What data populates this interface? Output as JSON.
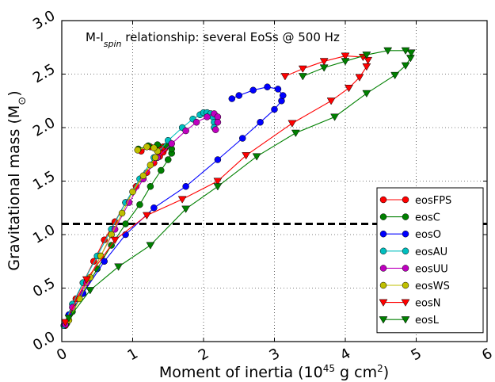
{
  "chart_data": {
    "type": "line",
    "annotation": {
      "prefix": "M-I",
      "sub": "spin",
      "suffix": " relationship: several EoSs @ 500 Hz"
    },
    "xlabel": {
      "prefix": "Moment of inertia (10",
      "sup": "45",
      "suffix": " g cm",
      "sup2": "2",
      "end": ")"
    },
    "ylabel": {
      "prefix": "Gravitational mass (M",
      "sub": "⊙",
      "end": ")"
    },
    "xlim": [
      0,
      6
    ],
    "ylim": [
      0,
      3
    ],
    "xticks": [
      "0",
      "1",
      "2",
      "3",
      "4",
      "5",
      "6"
    ],
    "yticks": [
      "0.0",
      "0.5",
      "1.0",
      "1.5",
      "2.0",
      "2.5",
      "3.0"
    ],
    "grid": true,
    "legend_position": "lower-right",
    "reference_line": {
      "y": 1.1,
      "style": "dashed",
      "color": "#000000"
    },
    "series": [
      {
        "name": "eosFPS",
        "color": "#ff0000",
        "marker": "circle",
        "points": [
          [
            0.05,
            0.15
          ],
          [
            0.1,
            0.25
          ],
          [
            0.2,
            0.4
          ],
          [
            0.3,
            0.55
          ],
          [
            0.45,
            0.75
          ],
          [
            0.6,
            0.95
          ],
          [
            0.75,
            1.12
          ],
          [
            0.9,
            1.3
          ],
          [
            1.05,
            1.45
          ],
          [
            1.2,
            1.58
          ],
          [
            1.3,
            1.67
          ],
          [
            1.38,
            1.73
          ],
          [
            1.43,
            1.77
          ],
          [
            1.45,
            1.8
          ],
          [
            1.43,
            1.82
          ],
          [
            1.36,
            1.83
          ],
          [
            1.25,
            1.82
          ],
          [
            1.12,
            1.78
          ]
        ]
      },
      {
        "name": "eosC",
        "color": "#008000",
        "marker": "circle",
        "points": [
          [
            0.07,
            0.17
          ],
          [
            0.15,
            0.28
          ],
          [
            0.3,
            0.45
          ],
          [
            0.5,
            0.68
          ],
          [
            0.7,
            0.9
          ],
          [
            0.9,
            1.1
          ],
          [
            1.1,
            1.28
          ],
          [
            1.25,
            1.45
          ],
          [
            1.4,
            1.6
          ],
          [
            1.5,
            1.7
          ],
          [
            1.55,
            1.76
          ],
          [
            1.55,
            1.8
          ],
          [
            1.48,
            1.83
          ],
          [
            1.35,
            1.84
          ],
          [
            1.22,
            1.83
          ],
          [
            1.08,
            1.8
          ]
        ]
      },
      {
        "name": "eosO",
        "color": "#0000ff",
        "marker": "circle",
        "points": [
          [
            0.1,
            0.25
          ],
          [
            0.3,
            0.45
          ],
          [
            0.6,
            0.75
          ],
          [
            0.9,
            1.0
          ],
          [
            1.3,
            1.25
          ],
          [
            1.75,
            1.45
          ],
          [
            2.2,
            1.7
          ],
          [
            2.55,
            1.9
          ],
          [
            2.8,
            2.05
          ],
          [
            3.0,
            2.17
          ],
          [
            3.1,
            2.25
          ],
          [
            3.12,
            2.3
          ],
          [
            3.05,
            2.36
          ],
          [
            2.9,
            2.38
          ],
          [
            2.7,
            2.35
          ],
          [
            2.5,
            2.3
          ],
          [
            2.4,
            2.27
          ]
        ]
      },
      {
        "name": "eosAU",
        "color": "#00bfbf",
        "marker": "circle",
        "points": [
          [
            0.03,
            0.15
          ],
          [
            0.15,
            0.35
          ],
          [
            0.3,
            0.55
          ],
          [
            0.5,
            0.8
          ],
          [
            0.7,
            1.05
          ],
          [
            0.9,
            1.3
          ],
          [
            1.1,
            1.52
          ],
          [
            1.3,
            1.72
          ],
          [
            1.5,
            1.88
          ],
          [
            1.7,
            2.0
          ],
          [
            1.85,
            2.08
          ],
          [
            1.95,
            2.12
          ],
          [
            2.0,
            2.14
          ],
          [
            2.05,
            2.14
          ],
          [
            2.1,
            2.13
          ],
          [
            2.13,
            2.1
          ],
          [
            2.15,
            2.05
          ],
          [
            2.15,
            2.0
          ]
        ]
      },
      {
        "name": "eosUU",
        "color": "#bf00bf",
        "marker": "circle",
        "points": [
          [
            0.05,
            0.16
          ],
          [
            0.15,
            0.32
          ],
          [
            0.35,
            0.55
          ],
          [
            0.55,
            0.8
          ],
          [
            0.75,
            1.05
          ],
          [
            0.95,
            1.3
          ],
          [
            1.15,
            1.52
          ],
          [
            1.35,
            1.72
          ],
          [
            1.55,
            1.85
          ],
          [
            1.75,
            1.97
          ],
          [
            1.9,
            2.05
          ],
          [
            2.05,
            2.1
          ],
          [
            2.15,
            2.13
          ],
          [
            2.2,
            2.1
          ],
          [
            2.2,
            2.05
          ],
          [
            2.17,
            1.98
          ]
        ]
      },
      {
        "name": "eosWS",
        "color": "#bfbf00",
        "marker": "circle",
        "points": [
          [
            0.1,
            0.2
          ],
          [
            0.25,
            0.4
          ],
          [
            0.4,
            0.6
          ],
          [
            0.55,
            0.8
          ],
          [
            0.7,
            1.0
          ],
          [
            0.85,
            1.2
          ],
          [
            1.0,
            1.4
          ],
          [
            1.15,
            1.55
          ],
          [
            1.25,
            1.65
          ],
          [
            1.32,
            1.72
          ],
          [
            1.35,
            1.78
          ],
          [
            1.3,
            1.81
          ],
          [
            1.2,
            1.82
          ],
          [
            1.07,
            1.79
          ]
        ]
      },
      {
        "name": "eosN",
        "color": "#ff0000",
        "marker": "triangle-down",
        "points": [
          [
            0.05,
            0.18
          ],
          [
            0.35,
            0.58
          ],
          [
            0.75,
            0.95
          ],
          [
            1.2,
            1.18
          ],
          [
            1.7,
            1.33
          ],
          [
            2.2,
            1.5
          ],
          [
            2.6,
            1.74
          ],
          [
            3.25,
            2.04
          ],
          [
            3.8,
            2.25
          ],
          [
            4.05,
            2.37
          ],
          [
            4.2,
            2.47
          ],
          [
            4.3,
            2.57
          ],
          [
            4.32,
            2.63
          ],
          [
            4.25,
            2.66
          ],
          [
            4.0,
            2.67
          ],
          [
            3.7,
            2.62
          ],
          [
            3.4,
            2.55
          ],
          [
            3.15,
            2.48
          ]
        ]
      },
      {
        "name": "eosL",
        "color": "#008000",
        "marker": "triangle-down",
        "points": [
          [
            0.1,
            0.22
          ],
          [
            0.4,
            0.48
          ],
          [
            0.8,
            0.7
          ],
          [
            1.25,
            0.9
          ],
          [
            1.75,
            1.24
          ],
          [
            2.2,
            1.45
          ],
          [
            2.75,
            1.73
          ],
          [
            3.3,
            1.95
          ],
          [
            3.85,
            2.1
          ],
          [
            4.3,
            2.32
          ],
          [
            4.7,
            2.49
          ],
          [
            4.85,
            2.58
          ],
          [
            4.92,
            2.65
          ],
          [
            4.93,
            2.7
          ],
          [
            4.85,
            2.72
          ],
          [
            4.6,
            2.72
          ],
          [
            4.3,
            2.68
          ],
          [
            4.0,
            2.62
          ],
          [
            3.7,
            2.56
          ],
          [
            3.4,
            2.48
          ]
        ]
      }
    ]
  }
}
